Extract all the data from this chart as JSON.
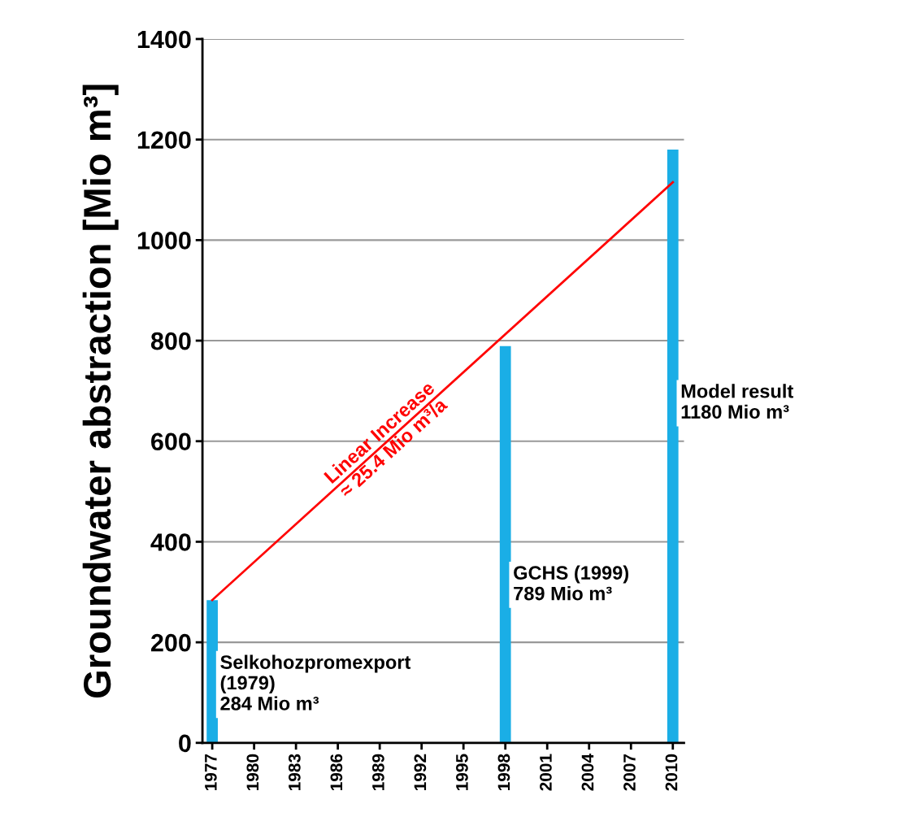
{
  "chart_data": {
    "type": "bar",
    "ylabel": "Groundwater abstraction [Mio m³]",
    "series": [
      {
        "color": "#1aaee6",
        "x": [
          1977,
          1998,
          2010
        ],
        "values": [
          284,
          789,
          1180
        ]
      },
      {
        "type": "line",
        "color": "#ff0000",
        "x": [
          1977,
          2010
        ],
        "values": [
          284,
          1115
        ]
      }
    ],
    "xlim": [
      1976.3,
      2010.8
    ],
    "xticks": [
      1977,
      1980,
      1983,
      1986,
      1989,
      1992,
      1995,
      1998,
      2001,
      2004,
      2007,
      2010
    ],
    "ylim": [
      0,
      1400
    ],
    "yticks": [
      0,
      200,
      400,
      600,
      800,
      1000,
      1200,
      1400
    ],
    "grid": "y",
    "legend": false,
    "annotations": [
      "Selkohozpromexport\n(1979)\n284 Mio m³",
      "GCHS (1999)\n789 Mio m³",
      "Model result\n1180 Mio m³",
      "Linear Increase\n≈ 25.4 Mio m³/a"
    ]
  }
}
